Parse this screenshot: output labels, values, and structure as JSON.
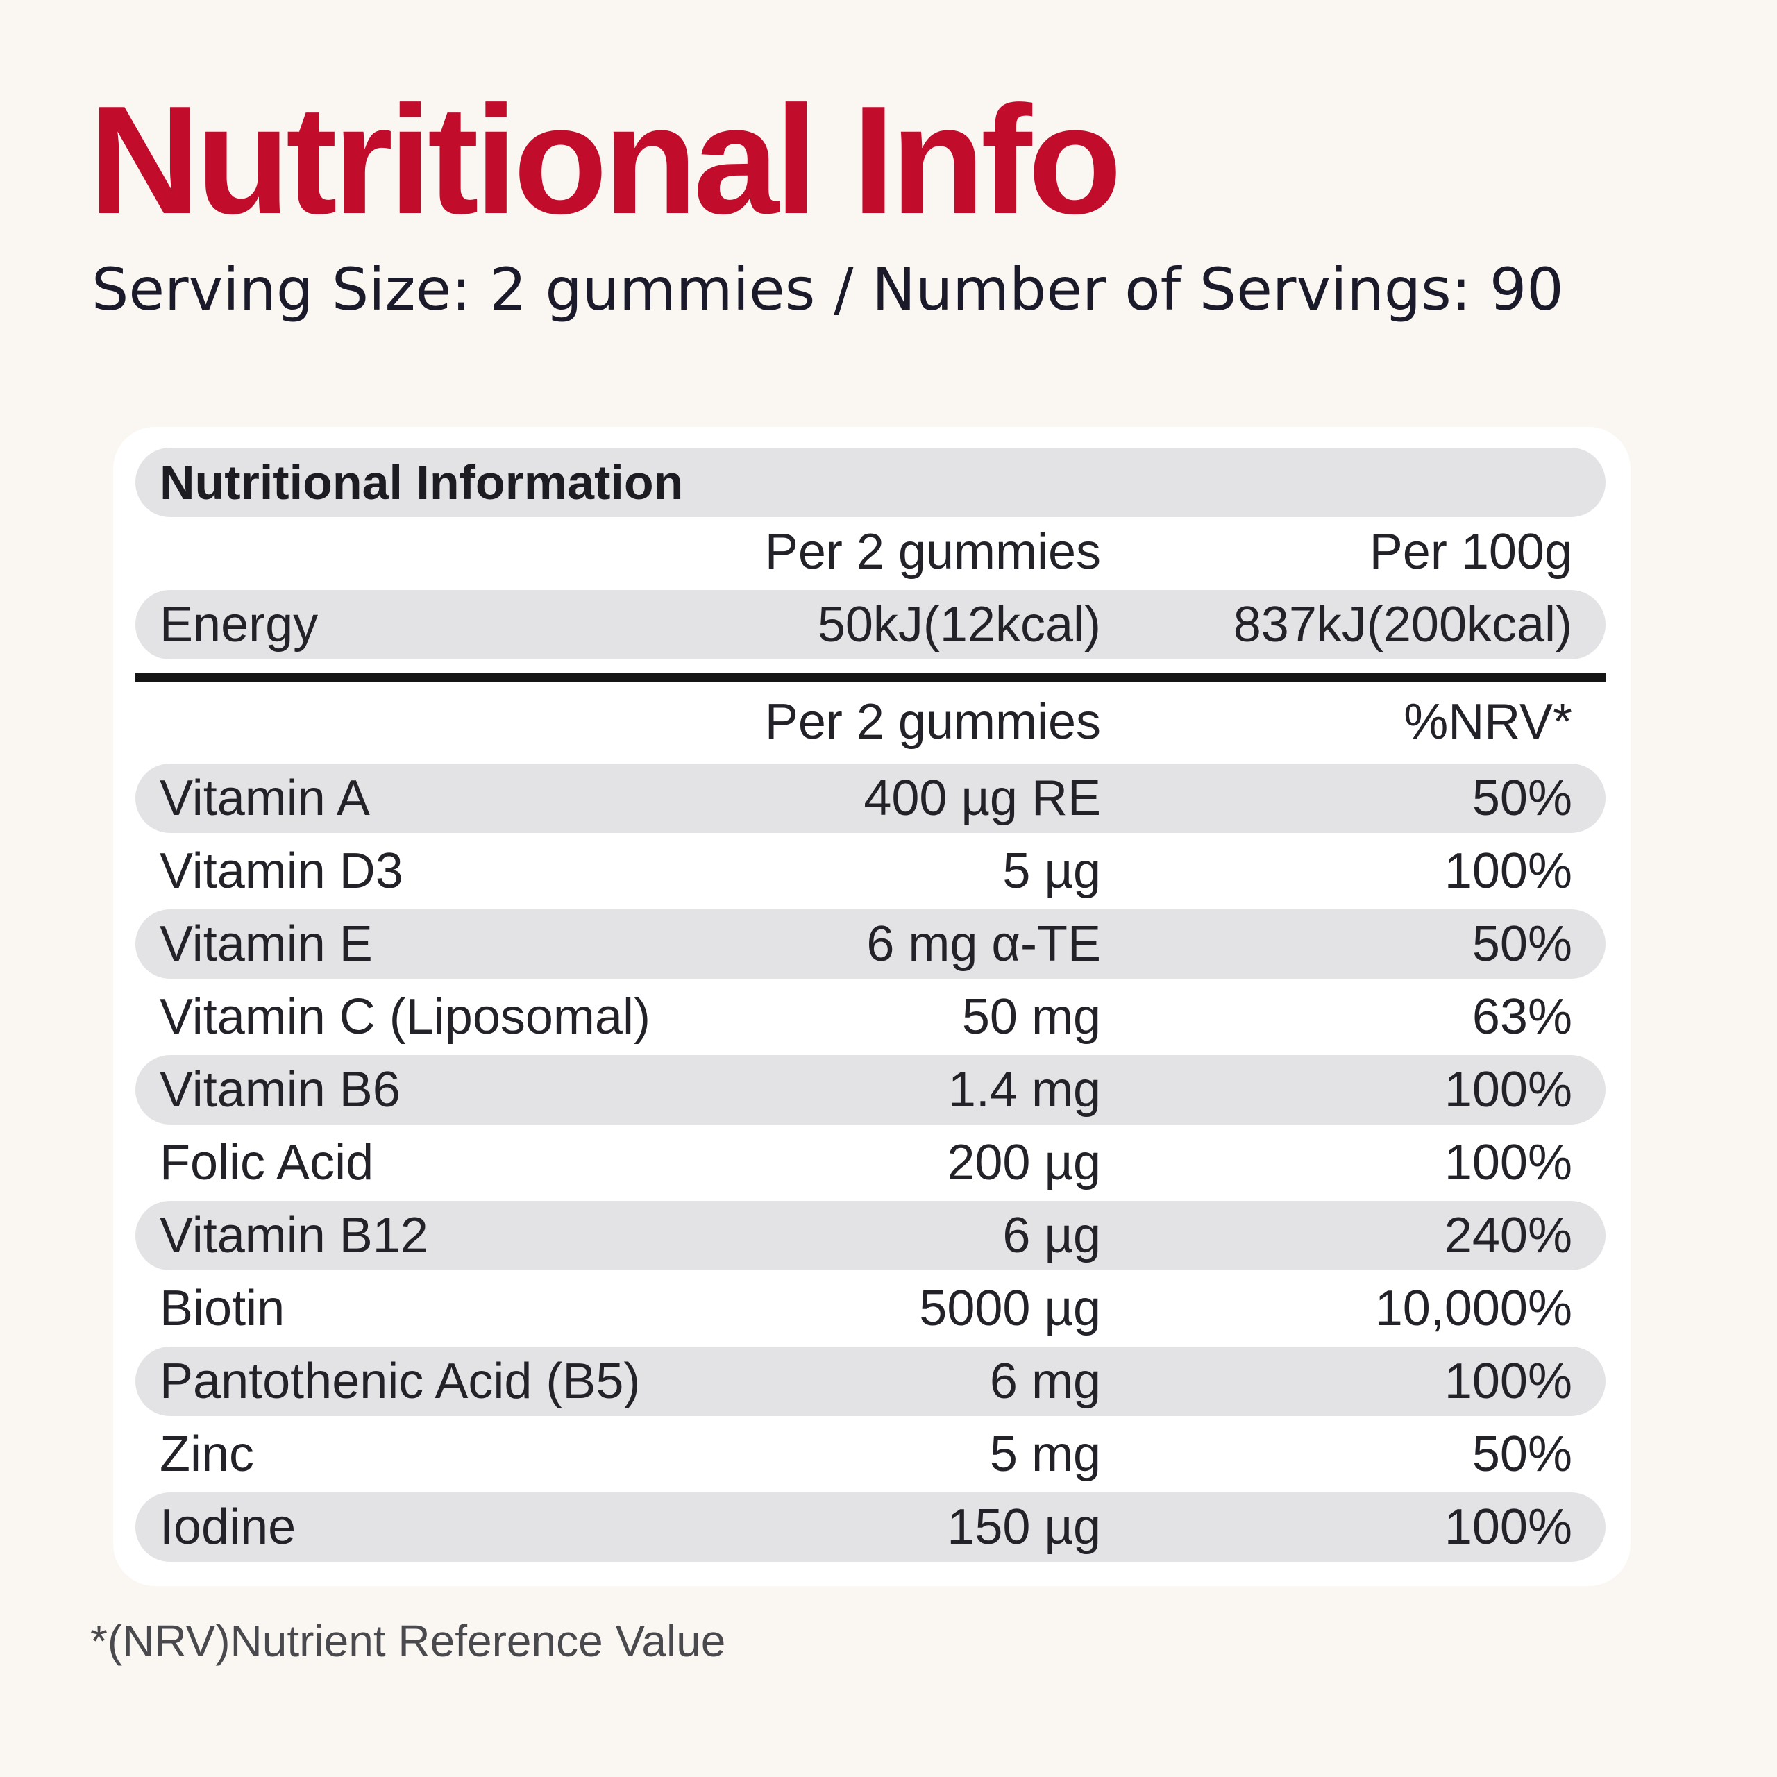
{
  "heading": {
    "title": "Nutritional Info",
    "subtitle": "Serving Size: 2 gummies  / Number of Servings: 90"
  },
  "table": {
    "title": "Nutritional Information",
    "energy_header": {
      "col1": "Per 2 gummies",
      "col2": "Per 100g"
    },
    "energy": {
      "name": "Energy",
      "per_serving": "50kJ(12kcal)",
      "per_100g": "837kJ(200kcal)"
    },
    "nutrient_header": {
      "col1": "Per 2 gummies",
      "col2": "%NRV*"
    },
    "rows": [
      {
        "name": "Vitamin A",
        "amount": "400 µg RE",
        "nrv": "50%"
      },
      {
        "name": "Vitamin D3",
        "amount": "5 µg",
        "nrv": "100%"
      },
      {
        "name": "Vitamin E",
        "amount": "6 mg α-TE",
        "nrv": "50%"
      },
      {
        "name": "Vitamin C (Liposomal)",
        "amount": "50 mg",
        "nrv": "63%"
      },
      {
        "name": "Vitamin B6",
        "amount": "1.4 mg",
        "nrv": "100%"
      },
      {
        "name": "Folic Acid",
        "amount": "200 µg",
        "nrv": "100%"
      },
      {
        "name": "Vitamin B12",
        "amount": "6 µg",
        "nrv": "240%"
      },
      {
        "name": "Biotin",
        "amount": "5000 µg",
        "nrv": "10,000%"
      },
      {
        "name": "Pantothenic Acid (B5)",
        "amount": "6 mg",
        "nrv": "100%"
      },
      {
        "name": "Zinc",
        "amount": "5 mg",
        "nrv": "50%"
      },
      {
        "name": "Iodine",
        "amount": "150 µg",
        "nrv": "100%"
      }
    ]
  },
  "footnote": "*(NRV)Nutrient Reference Value",
  "colors": {
    "accent": "#c20c2c",
    "background": "#faf6f1",
    "card": "#ffffff",
    "row_shade": "#e3e3e5"
  }
}
